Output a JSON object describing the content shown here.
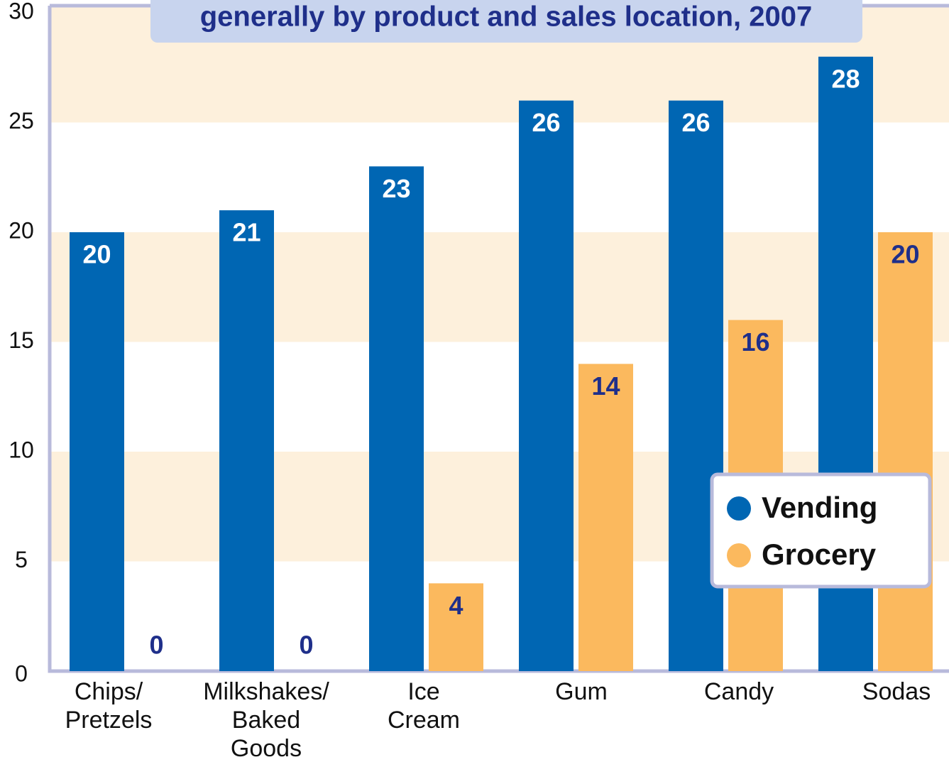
{
  "chart_data": {
    "type": "bar",
    "title": "generally by product and sales location, 2007",
    "categories": [
      [
        "Chips/",
        "Pretzels"
      ],
      [
        "Milkshakes/",
        "Baked",
        "Goods"
      ],
      [
        "Ice",
        "Cream"
      ],
      [
        "Gum"
      ],
      [
        "Candy"
      ],
      [
        "Sodas"
      ]
    ],
    "series": [
      {
        "name": "Vending",
        "color": "#0066b3",
        "values": [
          20,
          21,
          23,
          26,
          26,
          28
        ]
      },
      {
        "name": "Grocery",
        "color": "#fbb95e",
        "values": [
          0,
          0,
          4,
          14,
          16,
          20
        ]
      }
    ],
    "ylim": [
      0,
      30
    ],
    "yticks": [
      0,
      5,
      10,
      15,
      20,
      25,
      30
    ],
    "legend": "lower right"
  }
}
